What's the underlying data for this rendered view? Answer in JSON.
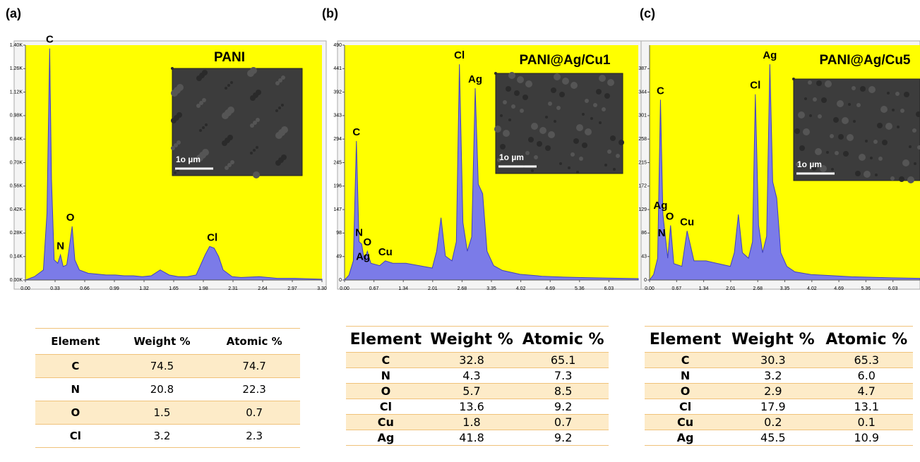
{
  "panel_labels": [
    "(a)",
    "(b)",
    "(c)"
  ],
  "chart_data": [
    {
      "type": "area",
      "title": "PANI",
      "color": "#7b7be8",
      "background": "#ffff00",
      "xlim": [
        0,
        3.3
      ],
      "ylim": [
        0,
        1400
      ],
      "xticks": [
        {
          "value": 0,
          "label": "0.00"
        },
        0.33,
        0.66,
        0.99,
        1.32,
        1.65,
        1.98,
        2.31,
        2.64,
        2.97,
        {
          "value": 3.3,
          "label": "3.30"
        }
      ],
      "yticks": [
        {
          "value": 0,
          "label": "0.00K"
        },
        {
          "value": 140,
          "label": "0.14K"
        },
        {
          "value": 280,
          "label": "0.28K"
        },
        {
          "value": 420,
          "label": "0.42K"
        },
        {
          "value": 560,
          "label": "0.56K"
        },
        {
          "value": 700,
          "label": "0.70K"
        },
        {
          "value": 840,
          "label": "0.84K"
        },
        {
          "value": 980,
          "label": "0.98K"
        },
        {
          "value": 1120,
          "label": "1.12K"
        },
        {
          "value": 1260,
          "label": "1.26K"
        },
        {
          "value": 1400,
          "label": "1.40K"
        }
      ],
      "x": [
        0,
        0.1,
        0.2,
        0.24,
        0.27,
        0.29,
        0.32,
        0.36,
        0.39,
        0.42,
        0.46,
        0.5,
        0.52,
        0.55,
        0.6,
        0.7,
        0.8,
        0.9,
        1.0,
        1.1,
        1.2,
        1.3,
        1.4,
        1.5,
        1.6,
        1.7,
        1.8,
        1.9,
        2.0,
        2.05,
        2.1,
        2.15,
        2.2,
        2.3,
        2.4,
        2.6,
        2.8,
        3.0,
        3.3
      ],
      "values": [
        0,
        20,
        60,
        400,
        1380,
        600,
        120,
        100,
        150,
        80,
        90,
        240,
        320,
        120,
        60,
        40,
        35,
        30,
        30,
        25,
        25,
        20,
        25,
        60,
        30,
        20,
        20,
        30,
        150,
        200,
        190,
        140,
        60,
        20,
        15,
        20,
        10,
        10,
        5
      ],
      "annotations": [
        {
          "text": "C",
          "x": 0.27,
          "y": 1380
        },
        {
          "text": "N",
          "x": 0.39,
          "y": 150
        },
        {
          "text": "O",
          "x": 0.5,
          "y": 320
        },
        {
          "text": "Cl",
          "x": 2.08,
          "y": 200
        }
      ],
      "inset_scale_label": "1o µm"
    },
    {
      "type": "area",
      "title": "PANI@Ag/Cu1",
      "color": "#7b7be8",
      "background": "#ffff00",
      "xlim": [
        0,
        6.7
      ],
      "ylim": [
        0,
        490
      ],
      "xticks": [
        {
          "value": 0,
          "label": "0.00"
        },
        0.67,
        1.34,
        2.01,
        2.68,
        3.35,
        4.02,
        4.69,
        5.36,
        6.03
      ],
      "yticks": [
        0,
        49,
        98,
        147,
        196,
        245,
        294,
        343,
        392,
        441,
        490
      ],
      "x": [
        0,
        0.1,
        0.2,
        0.27,
        0.33,
        0.39,
        0.45,
        0.52,
        0.6,
        0.8,
        0.93,
        1.1,
        1.4,
        1.7,
        2.0,
        2.1,
        2.2,
        2.3,
        2.45,
        2.55,
        2.62,
        2.7,
        2.8,
        2.9,
        2.98,
        3.05,
        3.15,
        3.25,
        3.4,
        3.6,
        4.0,
        4.5,
        5.0,
        5.5,
        6.0,
        6.7
      ],
      "values": [
        0,
        10,
        40,
        290,
        80,
        75,
        40,
        60,
        35,
        30,
        40,
        35,
        35,
        30,
        25,
        60,
        130,
        50,
        40,
        80,
        450,
        120,
        60,
        90,
        400,
        200,
        180,
        60,
        30,
        20,
        12,
        8,
        6,
        5,
        4,
        3
      ],
      "annotations": [
        {
          "text": "C",
          "x": 0.27,
          "y": 290
        },
        {
          "text": "N",
          "x": 0.33,
          "y": 80
        },
        {
          "text": "O",
          "x": 0.52,
          "y": 60
        },
        {
          "text": "Ag",
          "x": 0.42,
          "y": 30
        },
        {
          "text": "Cu",
          "x": 0.93,
          "y": 40
        },
        {
          "text": "Cl",
          "x": 2.62,
          "y": 450
        },
        {
          "text": "Ag",
          "x": 2.98,
          "y": 400
        }
      ],
      "inset_scale_label": "1o µm"
    },
    {
      "type": "area",
      "title": "PANI@Ag/Cu5",
      "color": "#7b7be8",
      "background": "#ffff00",
      "xlim": [
        0,
        6.7
      ],
      "ylim": [
        0,
        430
      ],
      "xticks": [
        {
          "value": 0,
          "label": "0.00"
        },
        0.67,
        1.34,
        2.01,
        2.68,
        3.35,
        4.02,
        4.69,
        5.36,
        6.03
      ],
      "yticks": [
        0,
        43,
        86,
        129,
        172,
        215,
        258,
        301,
        344,
        387
      ],
      "x": [
        0,
        0.1,
        0.2,
        0.27,
        0.33,
        0.39,
        0.45,
        0.52,
        0.6,
        0.8,
        0.93,
        1.1,
        1.4,
        1.7,
        2.0,
        2.1,
        2.2,
        2.3,
        2.45,
        2.55,
        2.62,
        2.7,
        2.8,
        2.9,
        2.98,
        3.05,
        3.15,
        3.25,
        3.4,
        3.6,
        4.0,
        4.5,
        5.0,
        5.5,
        6.0,
        6.7
      ],
      "values": [
        0,
        10,
        40,
        330,
        120,
        80,
        40,
        100,
        30,
        25,
        90,
        35,
        35,
        30,
        25,
        50,
        120,
        50,
        40,
        70,
        340,
        100,
        50,
        80,
        395,
        180,
        150,
        50,
        25,
        15,
        10,
        8,
        6,
        5,
        4,
        3
      ],
      "annotations": [
        {
          "text": "C",
          "x": 0.27,
          "y": 330
        },
        {
          "text": "Ag",
          "x": 0.27,
          "y": 120
        },
        {
          "text": "O",
          "x": 0.5,
          "y": 100
        },
        {
          "text": "N",
          "x": 0.3,
          "y": 70
        },
        {
          "text": "Cu",
          "x": 0.93,
          "y": 90
        },
        {
          "text": "Cl",
          "x": 2.62,
          "y": 340
        },
        {
          "text": "Ag",
          "x": 2.98,
          "y": 395
        }
      ],
      "inset_scale_label": "1o µm"
    }
  ],
  "tables": [
    {
      "header": [
        "Element",
        "Weight %",
        "Atomic %"
      ],
      "rows": [
        [
          "C",
          "74.5",
          "74.7"
        ],
        [
          "N",
          "20.8",
          "22.3"
        ],
        [
          "O",
          "1.5",
          "0.7"
        ],
        [
          "Cl",
          "3.2",
          "2.3"
        ]
      ]
    },
    {
      "header": [
        "Element",
        "Weight %",
        "Atomic %"
      ],
      "rows": [
        [
          "C",
          "32.8",
          "65.1"
        ],
        [
          "N",
          "4.3",
          "7.3"
        ],
        [
          "O",
          "5.7",
          "8.5"
        ],
        [
          "Cl",
          "13.6",
          "9.2"
        ],
        [
          "Cu",
          "1.8",
          "0.7"
        ],
        [
          "Ag",
          "41.8",
          "9.2"
        ]
      ]
    },
    {
      "header": [
        "Element",
        "Weight %",
        "Atomic %"
      ],
      "rows": [
        [
          "C",
          "30.3",
          "65.3"
        ],
        [
          "N",
          "3.2",
          "6.0"
        ],
        [
          "O",
          "2.9",
          "4.7"
        ],
        [
          "Cl",
          "17.9",
          "13.1"
        ],
        [
          "Cu",
          "0.2",
          "0.1"
        ],
        [
          "Ag",
          "45.5",
          "10.9"
        ]
      ]
    }
  ]
}
